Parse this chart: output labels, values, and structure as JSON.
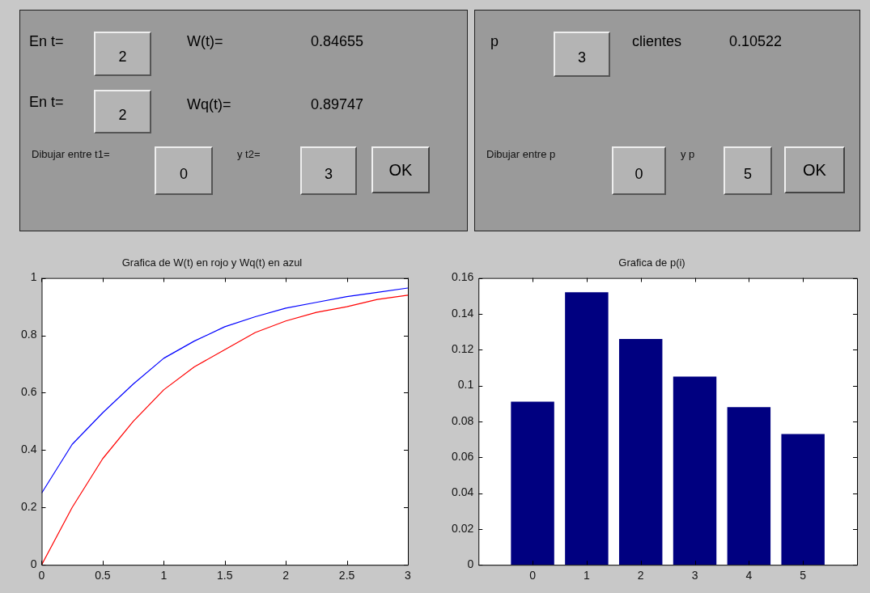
{
  "chart_data": [
    {
      "type": "other",
      "annotations": [
        "En t=",
        "2",
        "W(t)=",
        "0.84655",
        "En t=",
        "2",
        "Wq(t)=",
        "0.89747",
        "Dibujar entre t1=",
        "0",
        "y t2=",
        "3",
        "OK"
      ]
    },
    {
      "type": "other",
      "annotations": [
        "p",
        "3",
        "clientes",
        "0.10522",
        "Dibujar entre p",
        "0",
        "y p",
        "5",
        "OK"
      ]
    },
    {
      "type": "line",
      "title": "Grafica de W(t) en rojo y Wq(t) en azul",
      "x": [
        0,
        0.25,
        0.5,
        0.75,
        1,
        1.25,
        1.5,
        1.75,
        2,
        2.25,
        2.5,
        2.75,
        3
      ],
      "series": [
        {
          "color": "#ff0000",
          "values": [
            0,
            0.2,
            0.37,
            0.5,
            0.61,
            0.69,
            0.75,
            0.81,
            0.85,
            0.88,
            0.9,
            0.925,
            0.94
          ]
        },
        {
          "color": "#0000ff",
          "values": [
            0.25,
            0.42,
            0.53,
            0.63,
            0.72,
            0.78,
            0.83,
            0.865,
            0.895,
            0.915,
            0.935,
            0.95,
            0.965
          ]
        }
      ],
      "xlim": [
        0,
        3
      ],
      "xticks": [
        0,
        0.5,
        1,
        1.5,
        2,
        2.5,
        3
      ],
      "ylim": [
        0,
        1
      ],
      "yticks": [
        0,
        0.2,
        0.4,
        0.6,
        0.8,
        1
      ]
    },
    {
      "type": "bar",
      "title": "Grafica de p(i)",
      "x": [
        0,
        1,
        2,
        3,
        4,
        5
      ],
      "values": [
        0.091,
        0.152,
        0.126,
        0.105,
        0.088,
        0.073
      ],
      "color": "#000080",
      "xlim": [
        -1,
        6
      ],
      "xticks": [
        0,
        1,
        2,
        3,
        4,
        5
      ],
      "ylim": [
        0,
        0.16
      ],
      "yticks": [
        0,
        0.02,
        0.04,
        0.06,
        0.08,
        0.1,
        0.12,
        0.14,
        0.16
      ]
    }
  ]
}
